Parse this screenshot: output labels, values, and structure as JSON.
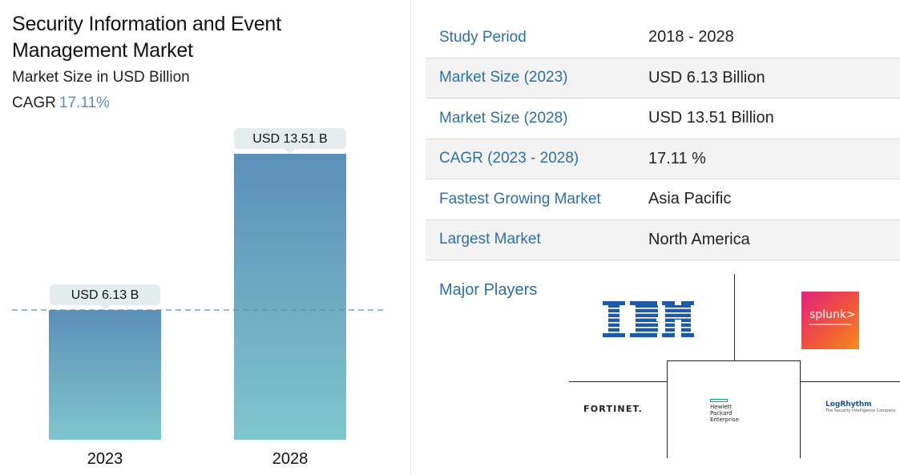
{
  "header": {
    "title": "Security Information and Event Management Market",
    "subtitle": "Market Size in USD Billion",
    "cagr_label": "CAGR",
    "cagr_value": "17.11%"
  },
  "chart_data": {
    "type": "bar",
    "categories": [
      "2023",
      "2028"
    ],
    "values": [
      6.13,
      13.51
    ],
    "data_labels": [
      "USD 6.13 B",
      "USD 13.51 B"
    ],
    "title": "Security Information and Event Management Market",
    "subtitle": "Market Size in USD Billion",
    "xlabel": "",
    "ylabel": "",
    "ylim": [
      0,
      13.51
    ],
    "reference_line": 6.13,
    "grid": false,
    "bar_color_top": "#5b8fb8",
    "bar_color_bottom": "#7fc6cc"
  },
  "summary_table": {
    "rows": [
      {
        "key": "Study Period",
        "value": "2018 - 2028"
      },
      {
        "key": "Market Size (2023)",
        "value": "USD 6.13 Billion"
      },
      {
        "key": "Market Size (2028)",
        "value": "USD 13.51 Billion"
      },
      {
        "key": "CAGR (2023 - 2028)",
        "value": "17.11 %"
      },
      {
        "key": "Fastest Growing Market",
        "value": "Asia Pacific"
      },
      {
        "key": "Largest Market",
        "value": "North America"
      }
    ]
  },
  "players": {
    "label": "Major Players",
    "logos": [
      {
        "name": "IBM",
        "icon": "ibm-logo"
      },
      {
        "name": "splunk>",
        "icon": "splunk-logo"
      },
      {
        "name": "FORTINET.",
        "icon": "fortinet-logo"
      },
      {
        "name": "Hewlett Packard Enterprise",
        "icon": "hpe-logo"
      },
      {
        "name": "LogRhythm",
        "icon": "logrhythm-logo",
        "tagline": "The Security Intelligence Company"
      }
    ]
  },
  "colors": {
    "accent": "#2e6fa7",
    "cagr": "#5b8fb8",
    "label_bg": "#e4ecee"
  }
}
